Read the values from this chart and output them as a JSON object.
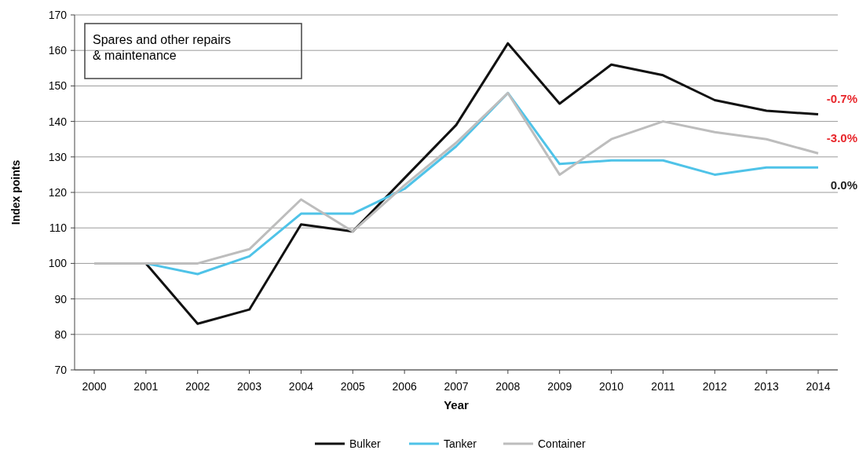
{
  "chart_data": {
    "type": "line",
    "title": "Spares and other repairs\n& maintenance",
    "xlabel": "Year",
    "ylabel": "Index points",
    "categories": [
      "2000",
      "2001",
      "2002",
      "2003",
      "2004",
      "2005",
      "2006",
      "2007",
      "2008",
      "2009",
      "2010",
      "2011",
      "2012",
      "2013",
      "2014"
    ],
    "series": [
      {
        "name": "Bulker",
        "color": "#111111",
        "values": [
          100,
          100,
          83,
          87,
          111,
          109,
          124,
          139,
          162,
          145,
          156,
          153,
          146,
          143,
          142
        ]
      },
      {
        "name": "Tanker",
        "color": "#4fc3e8",
        "values": [
          100,
          100,
          97,
          102,
          114,
          114,
          121,
          133,
          148,
          128,
          129,
          129,
          125,
          127,
          127
        ]
      },
      {
        "name": "Container",
        "color": "#bdbdbd",
        "values": [
          100,
          100,
          100,
          104,
          118,
          109,
          122,
          134,
          148,
          125,
          135,
          140,
          137,
          135,
          131
        ]
      }
    ],
    "annotations": [
      "-0.7%",
      "-3.0%",
      "0.0%"
    ],
    "ylim": [
      70,
      170
    ],
    "yticks": [
      70,
      80,
      90,
      100,
      110,
      120,
      130,
      140,
      150,
      160,
      170
    ],
    "grid": "y",
    "legend": "bottom",
    "marker": "none",
    "line_style": "solid"
  }
}
